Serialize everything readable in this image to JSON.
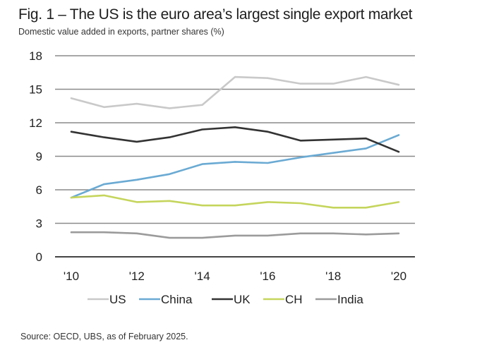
{
  "chart_data": {
    "type": "line",
    "title": "Fig. 1 – The US is the euro area’s largest single export market",
    "subtitle": "Domestic value added in exports, partner shares (%)",
    "xlabel": "",
    "ylabel": "",
    "x": [
      2010,
      2011,
      2012,
      2013,
      2014,
      2015,
      2016,
      2017,
      2018,
      2019,
      2020
    ],
    "x_tick_labels": [
      {
        "x": 2010,
        "label": "'10"
      },
      {
        "x": 2012,
        "label": "'12"
      },
      {
        "x": 2014,
        "label": "'14"
      },
      {
        "x": 2016,
        "label": "'16"
      },
      {
        "x": 2018,
        "label": "'18"
      },
      {
        "x": 2020,
        "label": "'20"
      }
    ],
    "y_ticks": [
      0,
      3,
      6,
      9,
      12,
      15,
      18
    ],
    "y_tick_labels": [
      "0",
      "3",
      "6",
      "9",
      "12",
      "15",
      "18"
    ],
    "ylim": [
      0,
      18
    ],
    "xlim": [
      2010,
      2020
    ],
    "grid": "horizontal",
    "legend_position": "bottom",
    "series": [
      {
        "name": "US",
        "color": "#c9c9c9",
        "values": [
          14.2,
          13.4,
          13.7,
          13.3,
          13.6,
          16.1,
          16.0,
          15.5,
          15.5,
          16.1,
          15.4
        ]
      },
      {
        "name": "China",
        "color": "#6aaad3",
        "values": [
          5.3,
          6.5,
          6.9,
          7.4,
          8.3,
          8.5,
          8.4,
          8.9,
          9.3,
          9.7,
          10.9
        ]
      },
      {
        "name": "UK",
        "color": "#333333",
        "values": [
          11.2,
          10.7,
          10.3,
          10.7,
          11.4,
          11.6,
          11.2,
          10.4,
          10.5,
          10.6,
          9.4
        ]
      },
      {
        "name": "CH",
        "color": "#c5d55c",
        "values": [
          5.3,
          5.5,
          4.9,
          5.0,
          4.6,
          4.6,
          4.9,
          4.8,
          4.4,
          4.4,
          4.9
        ]
      },
      {
        "name": "India",
        "color": "#9b9b9b",
        "values": [
          2.2,
          2.2,
          2.1,
          1.7,
          1.7,
          1.9,
          1.9,
          2.1,
          2.1,
          2.0,
          2.1
        ]
      }
    ],
    "source": "Source: OECD, UBS, as of February 2025."
  }
}
